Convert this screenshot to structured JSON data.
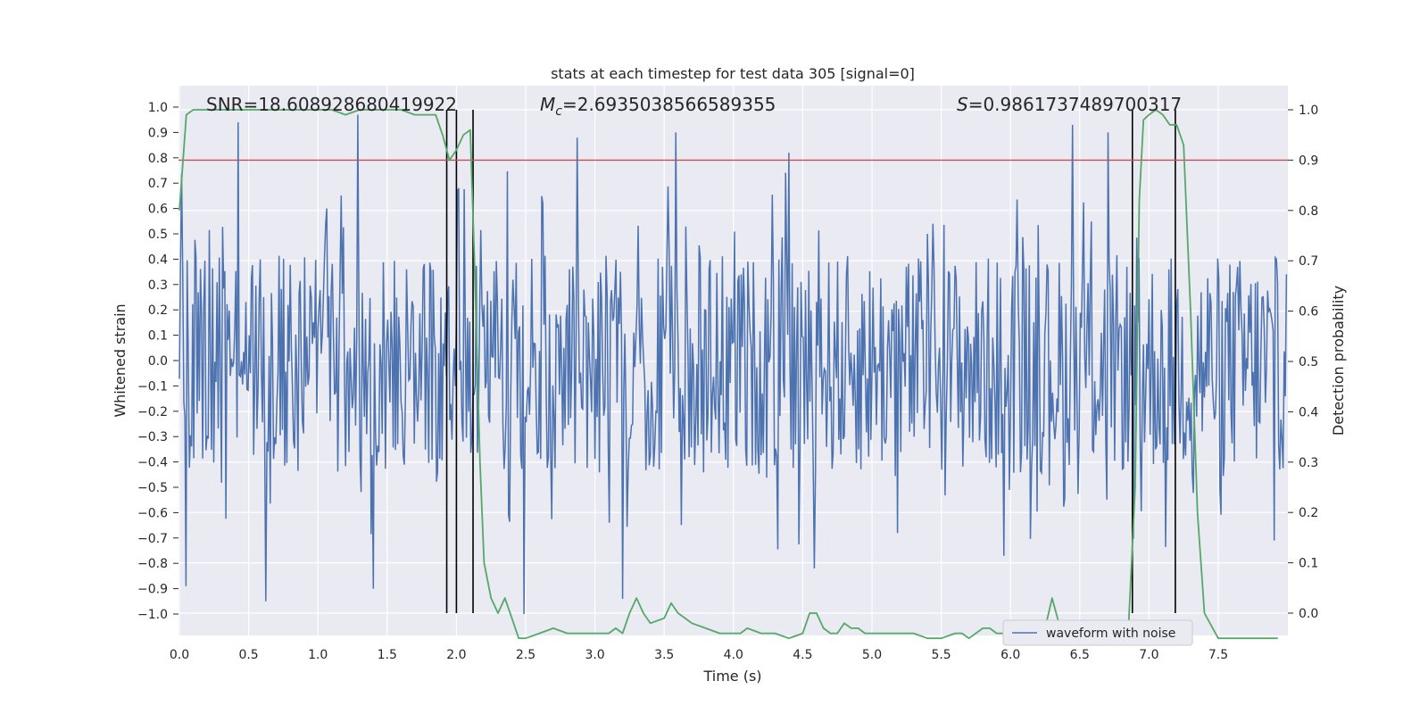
{
  "chart_data": {
    "type": "line",
    "title": "stats at each timestep for test data 305 [signal=0]",
    "xlabel": "Time (s)",
    "ylabel_left": "Whitened strain",
    "ylabel_right": "Detection probability",
    "xlim": [
      0.0,
      8.0
    ],
    "ylim_left": [
      -1.1,
      1.1
    ],
    "ylim_right": [
      -0.05,
      1.04
    ],
    "x_ticks": [
      0.0,
      0.5,
      1.0,
      1.5,
      2.0,
      2.5,
      3.0,
      3.5,
      4.0,
      4.5,
      5.0,
      5.5,
      6.0,
      6.5,
      7.0,
      7.5
    ],
    "x_tick_labels": [
      "0.0",
      "0.5",
      "1.0",
      "1.5",
      "2.0",
      "2.5",
      "3.0",
      "3.5",
      "4.0",
      "4.5",
      "5.0",
      "5.5",
      "6.0",
      "6.5",
      "7.0",
      "7.5"
    ],
    "y_left_ticks": [
      1.0,
      0.9,
      0.8,
      0.7,
      0.6,
      0.5,
      0.4,
      0.3,
      0.2,
      0.1,
      0.0,
      -0.1,
      -0.2,
      -0.3,
      -0.4,
      -0.5,
      -0.6,
      -0.7,
      -0.8,
      -0.9,
      -1.0
    ],
    "y_left_tick_labels": [
      "1.0",
      "0.9",
      "0.8",
      "0.7",
      "0.6",
      "0.5",
      "0.4",
      "0.3",
      "0.2",
      "0.1",
      "0.0",
      "−0.1",
      "−0.2",
      "−0.3",
      "−0.4",
      "−0.5",
      "−0.6",
      "−0.7",
      "−0.8",
      "−0.9",
      "−1.0"
    ],
    "y_right_ticks": [
      0.0,
      0.1,
      0.2,
      0.3,
      0.4,
      0.5,
      0.6,
      0.7,
      0.8,
      0.9,
      1.0
    ],
    "y_right_tick_labels": [
      "0.0",
      "0.1",
      "0.2",
      "0.3",
      "0.4",
      "0.5",
      "0.6",
      "0.7",
      "0.8",
      "0.9",
      "1.0"
    ],
    "annotations": {
      "snr": "SNR=18.608928680419922",
      "mc_symbol": "M",
      "mc_subscript": "c",
      "mc_value": "=2.6935038566589355",
      "s_symbol": "S",
      "s_value": "=0.9861737489700317"
    },
    "legend": {
      "label": "waveform with noise",
      "loc": "lower-right"
    },
    "threshold": {
      "value_right": 0.9,
      "color": "#c44e52"
    },
    "vertical_lines_s": [
      1.93,
      2.0,
      2.12,
      6.88,
      7.19
    ],
    "waveform": {
      "name": "waveform with noise",
      "color": "#4c72b0",
      "sample_count": 1000,
      "typical_range": [
        -0.45,
        0.42
      ],
      "peaks": [
        {
          "t": 0.42,
          "v": 0.94
        },
        {
          "t": 1.29,
          "v": 0.97
        },
        {
          "t": 3.58,
          "v": 0.9
        },
        {
          "t": 2.87,
          "v": 0.88
        },
        {
          "t": 4.4,
          "v": 0.82
        },
        {
          "t": 6.45,
          "v": 0.93
        },
        {
          "t": 6.7,
          "v": 0.9
        },
        {
          "t": 0.62,
          "v": -0.95
        },
        {
          "t": 1.4,
          "v": -0.9
        },
        {
          "t": 2.49,
          "v": -1.0
        },
        {
          "t": 3.2,
          "v": -0.94
        },
        {
          "t": 4.58,
          "v": -0.82
        },
        {
          "t": 0.05,
          "v": -0.89
        },
        {
          "t": 5.95,
          "v": -0.77
        }
      ]
    },
    "series": [
      {
        "name": "detection probability",
        "axis": "right",
        "color": "#55a868",
        "x": [
          0.0,
          0.05,
          0.1,
          0.15,
          0.2,
          0.3,
          0.4,
          0.5,
          0.6,
          0.7,
          0.8,
          0.9,
          1.0,
          1.1,
          1.2,
          1.3,
          1.4,
          1.5,
          1.6,
          1.7,
          1.8,
          1.85,
          1.9,
          1.95,
          2.0,
          2.05,
          2.1,
          2.13,
          2.17,
          2.2,
          2.25,
          2.3,
          2.35,
          2.4,
          2.45,
          2.5,
          2.6,
          2.7,
          2.8,
          2.9,
          3.0,
          3.05,
          3.1,
          3.15,
          3.2,
          3.25,
          3.3,
          3.35,
          3.4,
          3.5,
          3.55,
          3.6,
          3.65,
          3.7,
          3.8,
          3.9,
          4.0,
          4.05,
          4.1,
          4.2,
          4.3,
          4.4,
          4.5,
          4.55,
          4.6,
          4.65,
          4.7,
          4.75,
          4.8,
          4.85,
          4.9,
          4.95,
          5.0,
          5.1,
          5.2,
          5.3,
          5.4,
          5.5,
          5.6,
          5.65,
          5.7,
          5.75,
          5.8,
          5.85,
          5.9,
          6.0,
          6.1,
          6.2,
          6.25,
          6.3,
          6.35,
          6.4,
          6.5,
          6.6,
          6.7,
          6.8,
          6.85,
          6.9,
          6.93,
          6.96,
          7.0,
          7.05,
          7.1,
          7.15,
          7.2,
          7.25,
          7.3,
          7.35,
          7.4,
          7.5,
          7.6,
          7.7,
          7.8,
          7.93
        ],
        "values": [
          0.8,
          0.99,
          1.0,
          1.0,
          1.0,
          1.0,
          1.0,
          1.0,
          1.0,
          1.0,
          1.0,
          1.0,
          1.0,
          1.0,
          0.99,
          1.0,
          1.0,
          1.0,
          1.0,
          0.99,
          0.99,
          0.99,
          0.95,
          0.9,
          0.92,
          0.95,
          0.96,
          0.7,
          0.3,
          0.1,
          0.03,
          0.0,
          0.03,
          -0.01,
          -0.05,
          -0.05,
          -0.04,
          -0.03,
          -0.04,
          -0.04,
          -0.04,
          -0.04,
          -0.04,
          -0.03,
          -0.04,
          0.0,
          0.03,
          0.0,
          -0.02,
          -0.01,
          0.02,
          0.0,
          -0.01,
          -0.02,
          -0.03,
          -0.04,
          -0.04,
          -0.04,
          -0.03,
          -0.04,
          -0.04,
          -0.05,
          -0.04,
          0.0,
          0.0,
          -0.03,
          -0.04,
          -0.04,
          -0.02,
          -0.03,
          -0.03,
          -0.04,
          -0.04,
          -0.04,
          -0.04,
          -0.04,
          -0.05,
          -0.05,
          -0.04,
          -0.04,
          -0.05,
          -0.04,
          -0.03,
          -0.03,
          -0.04,
          -0.04,
          -0.04,
          -0.04,
          -0.03,
          0.03,
          -0.02,
          -0.04,
          -0.04,
          -0.05,
          -0.05,
          -0.05,
          -0.04,
          0.25,
          0.82,
          0.98,
          0.99,
          1.0,
          0.99,
          0.97,
          0.97,
          0.93,
          0.6,
          0.2,
          0.0,
          -0.05,
          -0.05,
          -0.05,
          -0.05,
          -0.05
        ]
      }
    ]
  }
}
